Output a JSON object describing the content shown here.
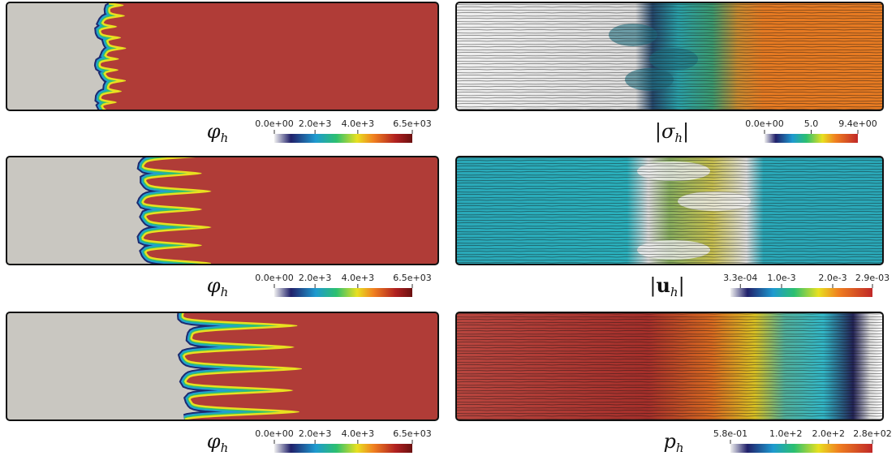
{
  "panels": [
    {
      "label": {
        "base": "φ",
        "sub": "h"
      },
      "colorbar": [
        "0.0e+00",
        "2.0e+3",
        "4.0e+3",
        "6.5e+03"
      ]
    },
    {
      "label": {
        "open": "|",
        "base": "σ",
        "sub": "h",
        "close": "|"
      },
      "colorbar": [
        "0.0e+00",
        "5.0",
        "9.4e+00"
      ]
    },
    {
      "label": {
        "base": "φ",
        "sub": "h"
      },
      "colorbar": [
        "0.0e+00",
        "2.0e+3",
        "4.0e+3",
        "6.5e+03"
      ]
    },
    {
      "label": {
        "open": "|",
        "base": "u",
        "sub": "h",
        "close": "|"
      },
      "colorbar": [
        "3.3e-04",
        "1.0e-3",
        "2.0e-3",
        "2.9e-03"
      ]
    },
    {
      "label": {
        "base": "φ",
        "sub": "h"
      },
      "colorbar": [
        "0.0e+00",
        "2.0e+3",
        "4.0e+3",
        "6.5e+03"
      ]
    },
    {
      "label": {
        "base": "p",
        "sub": "h"
      },
      "colorbar": [
        "5.8e-01",
        "1.0e+2",
        "2.0e+2",
        "2.8e+02"
      ]
    }
  ]
}
